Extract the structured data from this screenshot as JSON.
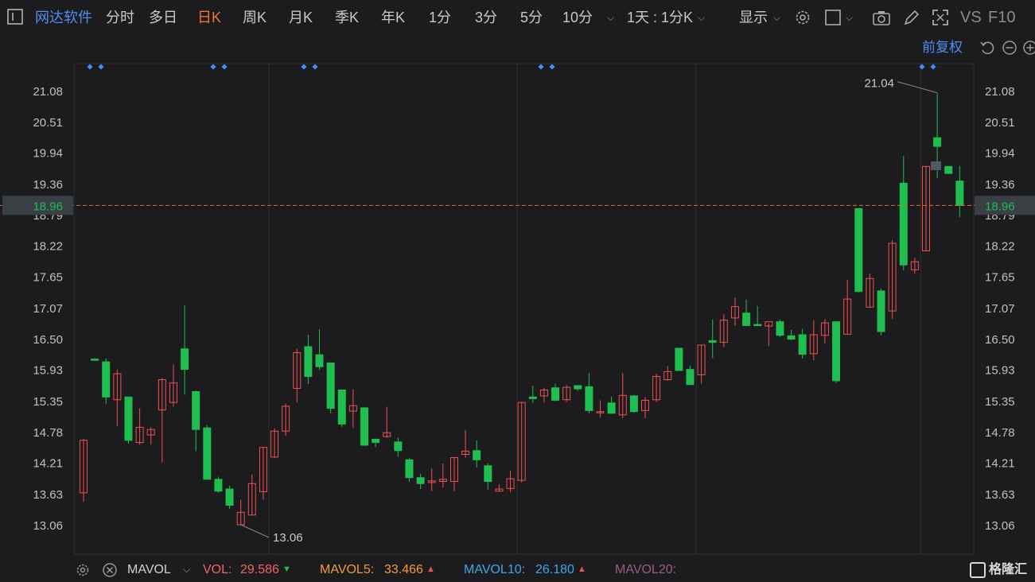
{
  "toolbar": {
    "stock_name": "网达软件",
    "periods": [
      "分时",
      "多日",
      "日K",
      "周K",
      "月K",
      "季K",
      "年K",
      "1分",
      "3分",
      "5分",
      "10分"
    ],
    "active_period": "日K",
    "combo_label": "1天 : 1分K",
    "display_label": "显示",
    "vs_label": "VS",
    "f10_label": "F10",
    "adjust_label": "前复权"
  },
  "colors": {
    "up": "#f05050",
    "down": "#1fbe50",
    "grid": "#2e2e32",
    "axis_text": "#c0c0c0",
    "current": "#1fbe50",
    "marker": "#3b8fff",
    "vol": "#f06464",
    "mavol5": "#f59a32",
    "mavol10": "#3ca8e6",
    "mavol20": "#9a5a8a"
  },
  "chart_data": {
    "type": "candlestick",
    "y_ticks": [
      "21.08",
      "20.51",
      "19.94",
      "19.36",
      "18.79",
      "18.22",
      "17.65",
      "17.07",
      "16.50",
      "15.93",
      "15.35",
      "14.78",
      "14.21",
      "13.63",
      "13.06"
    ],
    "ylim": [
      12.82,
      21.56
    ],
    "current_price": "18.96",
    "high_label": "21.04",
    "low_label": "13.06",
    "candles": [
      {
        "o": 13.65,
        "h": 14.65,
        "l": 13.48,
        "c": 14.62
      },
      {
        "o": 16.12,
        "h": 16.14,
        "l": 16.1,
        "c": 16.11
      },
      {
        "o": 16.07,
        "h": 16.13,
        "l": 15.29,
        "c": 15.42
      },
      {
        "o": 15.37,
        "h": 15.93,
        "l": 14.88,
        "c": 15.85
      },
      {
        "o": 15.42,
        "h": 15.42,
        "l": 14.56,
        "c": 14.62
      },
      {
        "o": 14.58,
        "h": 15.21,
        "l": 14.54,
        "c": 14.86
      },
      {
        "o": 14.72,
        "h": 14.86,
        "l": 14.54,
        "c": 14.82
      },
      {
        "o": 15.18,
        "h": 15.77,
        "l": 14.21,
        "c": 15.74
      },
      {
        "o": 15.32,
        "h": 16.02,
        "l": 15.24,
        "c": 15.68
      },
      {
        "o": 16.31,
        "h": 17.12,
        "l": 15.46,
        "c": 15.93
      },
      {
        "o": 15.52,
        "h": 15.54,
        "l": 14.42,
        "c": 14.82
      },
      {
        "o": 14.85,
        "h": 14.9,
        "l": 13.9,
        "c": 13.9
      },
      {
        "o": 13.9,
        "h": 13.95,
        "l": 13.65,
        "c": 13.68
      },
      {
        "o": 13.72,
        "h": 13.78,
        "l": 13.35,
        "c": 13.42
      },
      {
        "o": 13.06,
        "h": 13.52,
        "l": 13.06,
        "c": 13.29
      },
      {
        "o": 13.24,
        "h": 13.99,
        "l": 13.24,
        "c": 13.82
      },
      {
        "o": 13.67,
        "h": 14.5,
        "l": 13.52,
        "c": 14.49
      },
      {
        "o": 14.31,
        "h": 14.84,
        "l": 14.29,
        "c": 14.79
      },
      {
        "o": 14.79,
        "h": 15.3,
        "l": 14.7,
        "c": 15.25
      },
      {
        "o": 15.58,
        "h": 16.31,
        "l": 15.32,
        "c": 16.24
      },
      {
        "o": 16.35,
        "h": 16.57,
        "l": 15.66,
        "c": 15.8
      },
      {
        "o": 16.2,
        "h": 16.67,
        "l": 15.92,
        "c": 15.98
      },
      {
        "o": 16.05,
        "h": 16.06,
        "l": 15.12,
        "c": 15.21
      },
      {
        "o": 15.55,
        "h": 15.56,
        "l": 14.87,
        "c": 14.92
      },
      {
        "o": 15.16,
        "h": 15.56,
        "l": 14.85,
        "c": 15.26
      },
      {
        "o": 15.22,
        "h": 15.23,
        "l": 14.52,
        "c": 14.53
      },
      {
        "o": 14.64,
        "h": 14.65,
        "l": 14.5,
        "c": 14.58
      },
      {
        "o": 14.69,
        "h": 15.24,
        "l": 14.66,
        "c": 14.76
      },
      {
        "o": 14.59,
        "h": 14.67,
        "l": 14.32,
        "c": 14.43
      },
      {
        "o": 14.26,
        "h": 14.29,
        "l": 13.85,
        "c": 13.93
      },
      {
        "o": 13.93,
        "h": 14.0,
        "l": 13.72,
        "c": 13.82
      },
      {
        "o": 13.84,
        "h": 14.1,
        "l": 13.68,
        "c": 13.87
      },
      {
        "o": 13.86,
        "h": 14.19,
        "l": 13.75,
        "c": 13.9
      },
      {
        "o": 13.86,
        "h": 14.31,
        "l": 13.68,
        "c": 14.3
      },
      {
        "o": 14.36,
        "h": 14.81,
        "l": 14.3,
        "c": 14.42
      },
      {
        "o": 14.43,
        "h": 14.62,
        "l": 14.12,
        "c": 14.26
      },
      {
        "o": 14.15,
        "h": 14.19,
        "l": 13.71,
        "c": 13.86
      },
      {
        "o": 13.68,
        "h": 13.81,
        "l": 13.67,
        "c": 13.72
      },
      {
        "o": 13.73,
        "h": 14.06,
        "l": 13.66,
        "c": 13.91
      },
      {
        "o": 13.88,
        "h": 15.32,
        "l": 13.84,
        "c": 15.32
      },
      {
        "o": 15.42,
        "h": 15.63,
        "l": 15.31,
        "c": 15.39
      },
      {
        "o": 15.44,
        "h": 15.59,
        "l": 15.32,
        "c": 15.55
      },
      {
        "o": 15.59,
        "h": 15.67,
        "l": 15.34,
        "c": 15.36
      },
      {
        "o": 15.37,
        "h": 15.64,
        "l": 15.33,
        "c": 15.6
      },
      {
        "o": 15.63,
        "h": 15.63,
        "l": 15.53,
        "c": 15.57
      },
      {
        "o": 15.61,
        "h": 15.86,
        "l": 15.12,
        "c": 15.17
      },
      {
        "o": 15.14,
        "h": 15.36,
        "l": 15.04,
        "c": 15.15
      },
      {
        "o": 15.31,
        "h": 15.43,
        "l": 15.11,
        "c": 15.12
      },
      {
        "o": 15.09,
        "h": 15.86,
        "l": 15.03,
        "c": 15.45
      },
      {
        "o": 15.44,
        "h": 15.46,
        "l": 15.13,
        "c": 15.15
      },
      {
        "o": 15.17,
        "h": 15.42,
        "l": 15.03,
        "c": 15.36
      },
      {
        "o": 15.37,
        "h": 15.85,
        "l": 15.33,
        "c": 15.8
      },
      {
        "o": 15.74,
        "h": 15.99,
        "l": 15.72,
        "c": 15.89
      },
      {
        "o": 16.32,
        "h": 16.33,
        "l": 15.97,
        "c": 15.91
      },
      {
        "o": 15.93,
        "h": 16.0,
        "l": 15.65,
        "c": 15.65
      },
      {
        "o": 15.83,
        "h": 16.38,
        "l": 15.67,
        "c": 16.38
      },
      {
        "o": 16.46,
        "h": 16.85,
        "l": 16.14,
        "c": 16.43
      },
      {
        "o": 16.43,
        "h": 16.95,
        "l": 16.34,
        "c": 16.84
      },
      {
        "o": 16.88,
        "h": 17.26,
        "l": 16.74,
        "c": 17.09
      },
      {
        "o": 16.97,
        "h": 17.22,
        "l": 16.73,
        "c": 16.74
      },
      {
        "o": 16.76,
        "h": 17.1,
        "l": 16.74,
        "c": 16.74
      },
      {
        "o": 16.73,
        "h": 16.78,
        "l": 16.36,
        "c": 16.81
      },
      {
        "o": 16.81,
        "h": 16.85,
        "l": 16.53,
        "c": 16.56
      },
      {
        "o": 16.55,
        "h": 16.66,
        "l": 16.47,
        "c": 16.49
      },
      {
        "o": 16.57,
        "h": 16.68,
        "l": 16.13,
        "c": 16.21
      },
      {
        "o": 16.22,
        "h": 16.84,
        "l": 16.1,
        "c": 16.57
      },
      {
        "o": 16.56,
        "h": 16.86,
        "l": 16.41,
        "c": 16.79
      },
      {
        "o": 16.81,
        "h": 16.81,
        "l": 15.68,
        "c": 15.72
      },
      {
        "o": 16.58,
        "h": 17.58,
        "l": 16.58,
        "c": 17.23
      },
      {
        "o": 18.9,
        "h": 18.9,
        "l": 17.35,
        "c": 17.37
      },
      {
        "o": 17.08,
        "h": 17.7,
        "l": 17.08,
        "c": 17.61
      },
      {
        "o": 17.38,
        "h": 17.42,
        "l": 16.56,
        "c": 16.63
      },
      {
        "o": 17.01,
        "h": 18.32,
        "l": 16.86,
        "c": 18.26
      },
      {
        "o": 19.37,
        "h": 19.87,
        "l": 17.76,
        "c": 17.86
      },
      {
        "o": 17.77,
        "h": 17.99,
        "l": 17.7,
        "c": 17.92
      },
      {
        "o": 18.12,
        "h": 19.68,
        "l": 18.12,
        "c": 19.68
      },
      {
        "o": 20.21,
        "h": 21.04,
        "l": 19.46,
        "c": 20.05
      },
      {
        "o": 19.68,
        "h": 19.68,
        "l": 19.55,
        "c": 19.55
      },
      {
        "o": 19.41,
        "h": 19.69,
        "l": 18.74,
        "c": 18.96
      }
    ]
  },
  "volume_bar": {
    "indicator": "MAVOL",
    "vol_label": "VOL:",
    "vol_value": "29.586",
    "mavol5_label": "MAVOL5:",
    "mavol5_value": "33.466",
    "mavol10_label": "MAVOL10:",
    "mavol10_value": "26.180",
    "mavol20_label": "MAVOL20:",
    "down_arrow": "▼",
    "up_arrow": "▲"
  },
  "logo_text": "格隆汇"
}
